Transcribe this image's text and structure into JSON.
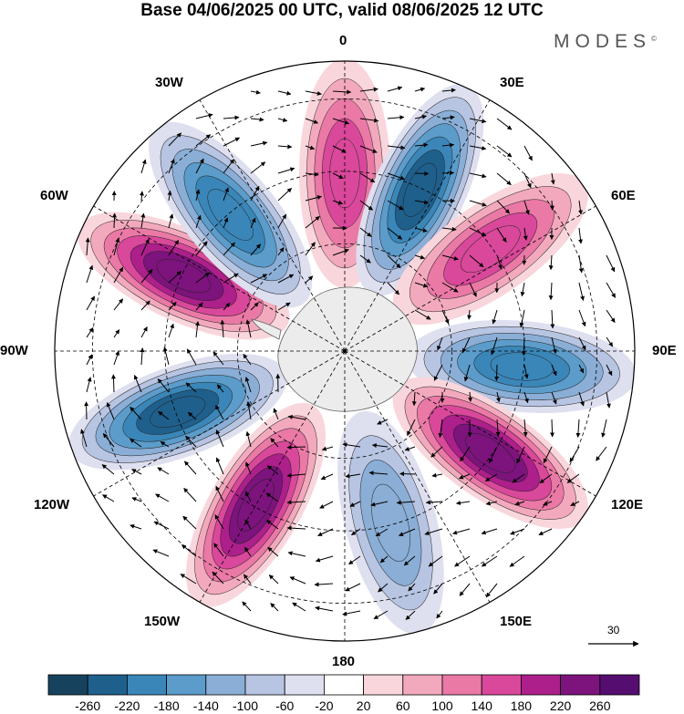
{
  "title": "Base 04/06/2025 00 UTC, valid 08/06/2025 12 UTC",
  "brand": "MODES",
  "brand_mark": "©",
  "longitude_labels": [
    "0",
    "30E",
    "60E",
    "90E",
    "120E",
    "150E",
    "180",
    "150W",
    "120W",
    "90W",
    "60W",
    "30W"
  ],
  "reference_vector": "30",
  "colorbar": {
    "labels": [
      "-260",
      "-220",
      "-180",
      "-140",
      "-100",
      "-60",
      "-20",
      "20",
      "60",
      "100",
      "140",
      "180",
      "220",
      "260"
    ],
    "colors": [
      "#17425e",
      "#1f5f8c",
      "#3a86b8",
      "#5b9ccb",
      "#8aaed6",
      "#b7c4e2",
      "#dedfef",
      "#ffffff",
      "#f9d6dc",
      "#f3a9bd",
      "#ea79a6",
      "#d9489a",
      "#ad1f8b",
      "#7d137d",
      "#560d70"
    ]
  },
  "chart_data": {
    "type": "heatmap",
    "projection": "south polar stereographic",
    "field_range": [
      -260,
      260
    ],
    "anomalies": [
      {
        "lon": 0,
        "sign": "positive",
        "peak": 160
      },
      {
        "lon": 25,
        "sign": "negative",
        "peak": -230
      },
      {
        "lon": 55,
        "sign": "positive",
        "peak": 170
      },
      {
        "lon": 95,
        "sign": "negative",
        "peak": -210
      },
      {
        "lon": 125,
        "sign": "positive",
        "peak": 220
      },
      {
        "lon": 165,
        "sign": "negative",
        "peak": -120
      },
      {
        "lon": 210,
        "sign": "positive",
        "peak": 240
      },
      {
        "lon": 250,
        "sign": "negative",
        "peak": -250
      },
      {
        "lon": 295,
        "sign": "positive",
        "peak": 250
      },
      {
        "lon": 320,
        "sign": "negative",
        "peak": -200
      }
    ]
  }
}
